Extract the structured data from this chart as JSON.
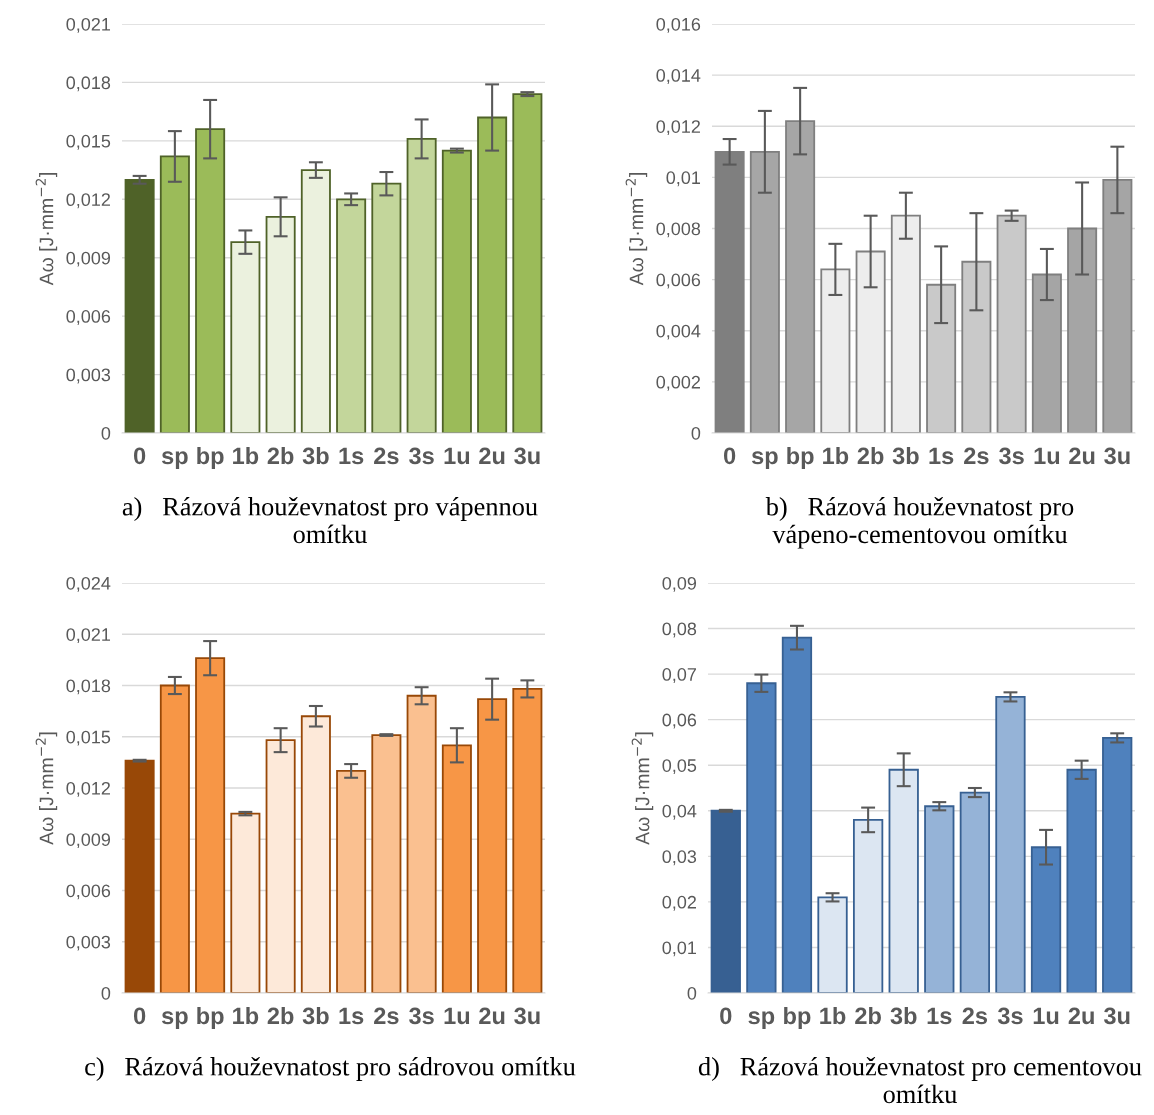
{
  "chart_data": [
    {
      "type": "bar",
      "title": "a)   Rázová houževnatost pro vápennou omítku",
      "ylabel": "Aω [J·mm$^{−2}$]",
      "categories": [
        "0",
        "sp",
        "bp",
        "1b",
        "2b",
        "3b",
        "1s",
        "2s",
        "3s",
        "1u",
        "2u",
        "3u"
      ],
      "values": [
        0.013,
        0.0142,
        0.0156,
        0.0098,
        0.0111,
        0.0135,
        0.012,
        0.0128,
        0.0151,
        0.0145,
        0.0162,
        0.0174
      ],
      "errors": [
        0.0002,
        0.0013,
        0.0015,
        0.0006,
        0.001,
        0.0004,
        0.0003,
        0.0006,
        0.001,
        0.0001,
        0.0017,
        0.0001
      ],
      "colors": [
        "#4f6228",
        "#9bbb59",
        "#9bbb59",
        "#ebf1de",
        "#ebf1de",
        "#ebf1de",
        "#c3d69b",
        "#c3d69b",
        "#c3d69b",
        "#9bbb59",
        "#9bbb59",
        "#9bbb59"
      ],
      "ylim": [
        0,
        0.021
      ],
      "yticks": [
        0,
        {
          "value": 0.003,
          "label": "0,003"
        },
        {
          "value": 0.006,
          "label": "0,006"
        },
        {
          "value": 0.009,
          "label": "0,009"
        },
        {
          "value": 0.012,
          "label": "0,012"
        },
        {
          "value": 0.015,
          "label": "0,015"
        },
        {
          "value": 0.018,
          "label": "0,018"
        },
        {
          "value": 0.021,
          "label": "0,021"
        }
      ],
      "grid": "y"
    },
    {
      "type": "bar",
      "title": "b)   Rázová houževnatost pro vápeno-cementovou omítku",
      "ylabel": "Aω [J·mm$^{−2}$]",
      "categories": [
        "0",
        "sp",
        "bp",
        "1b",
        "2b",
        "3b",
        "1s",
        "2s",
        "3s",
        "1u",
        "2u",
        "3u"
      ],
      "values": [
        0.011,
        0.011,
        0.0122,
        0.0064,
        0.0071,
        0.0085,
        0.0058,
        0.0067,
        0.0085,
        0.0062,
        0.008,
        0.0099
      ],
      "errors": [
        0.0005,
        0.0016,
        0.0013,
        0.001,
        0.0014,
        0.0009,
        0.0015,
        0.0019,
        0.0002,
        0.001,
        0.0018,
        0.0013
      ],
      "colors": [
        "#7f7f7f",
        "#a6a6a6",
        "#a6a6a6",
        "#ededed",
        "#ededed",
        "#ededed",
        "#c9c9c9",
        "#c9c9c9",
        "#c9c9c9",
        "#a5a5a5",
        "#a5a5a5",
        "#a5a5a5"
      ],
      "ylim": [
        0,
        0.016
      ],
      "yticks": [
        0,
        {
          "value": 0.002,
          "label": "0,002"
        },
        {
          "value": 0.004,
          "label": "0,004"
        },
        {
          "value": 0.006,
          "label": "0,006"
        },
        {
          "value": 0.008,
          "label": "0,008"
        },
        {
          "value": 0.01,
          "label": "0,01"
        },
        {
          "value": 0.012,
          "label": "0,012"
        },
        {
          "value": 0.014,
          "label": "0,014"
        },
        {
          "value": 0.016,
          "label": "0,016"
        }
      ],
      "grid": "y"
    },
    {
      "type": "bar",
      "title": "c)   Rázová houževnatost pro sádrovou omítku",
      "ylabel": "Aω [J·mm$^{−2}$]",
      "categories": [
        "0",
        "sp",
        "bp",
        "1b",
        "2b",
        "3b",
        "1s",
        "2s",
        "3s",
        "1u",
        "2u",
        "3u"
      ],
      "values": [
        0.0136,
        0.018,
        0.0196,
        0.0105,
        0.0148,
        0.0162,
        0.013,
        0.0151,
        0.0174,
        0.0145,
        0.0172,
        0.0178
      ],
      "errors": [
        5e-05,
        0.0005,
        0.001,
        0.0001,
        0.0007,
        0.0006,
        0.0004,
        5e-05,
        0.0005,
        0.001,
        0.0012,
        0.0005
      ],
      "colors": [
        "#984807",
        "#f79646",
        "#f79646",
        "#fde9d9",
        "#fde9d9",
        "#fde9d9",
        "#fac090",
        "#fac090",
        "#fac090",
        "#f79646",
        "#f79646",
        "#f79646"
      ],
      "ylim": [
        0,
        0.024
      ],
      "yticks": [
        0,
        {
          "value": 0.003,
          "label": "0,003"
        },
        {
          "value": 0.006,
          "label": "0,006"
        },
        {
          "value": 0.009,
          "label": "0,009"
        },
        {
          "value": 0.012,
          "label": "0,012"
        },
        {
          "value": 0.015,
          "label": "0,015"
        },
        {
          "value": 0.018,
          "label": "0,018"
        },
        {
          "value": 0.021,
          "label": "0,021"
        },
        {
          "value": 0.024,
          "label": "0,024"
        }
      ],
      "grid": "y"
    },
    {
      "type": "bar",
      "title": "d)   Rázová houževnatost pro cementovou omítku",
      "ylabel": "Aω [J·mm$^{−2}$]",
      "categories": [
        "0",
        "sp",
        "bp",
        "1b",
        "2b",
        "3b",
        "1s",
        "2s",
        "3s",
        "1u",
        "2u",
        "3u"
      ],
      "values": [
        0.04,
        0.068,
        0.078,
        0.021,
        0.038,
        0.049,
        0.041,
        0.044,
        0.065,
        0.032,
        0.049,
        0.056
      ],
      "errors": [
        0.0002,
        0.0019,
        0.0026,
        0.0009,
        0.0027,
        0.0036,
        0.0009,
        0.001,
        0.001,
        0.0038,
        0.002,
        0.001
      ],
      "colors": [
        "#376092",
        "#4f81bd",
        "#4f81bd",
        "#dce6f2",
        "#dce6f2",
        "#dce6f2",
        "#95b3d7",
        "#95b3d7",
        "#95b3d7",
        "#4f81bd",
        "#4f81bd",
        "#4f81bd"
      ],
      "ylim": [
        0,
        0.09
      ],
      "yticks": [
        0,
        {
          "value": 0.01,
          "label": "0,01"
        },
        {
          "value": 0.02,
          "label": "0,02"
        },
        {
          "value": 0.03,
          "label": "0,03"
        },
        {
          "value": 0.04,
          "label": "0,04"
        },
        {
          "value": 0.05,
          "label": "0,05"
        },
        {
          "value": 0.06,
          "label": "0,06"
        },
        {
          "value": 0.07,
          "label": "0,07"
        },
        {
          "value": 0.08,
          "label": "0,08"
        },
        {
          "value": 0.09,
          "label": "0,09"
        }
      ],
      "grid": "y"
    }
  ]
}
